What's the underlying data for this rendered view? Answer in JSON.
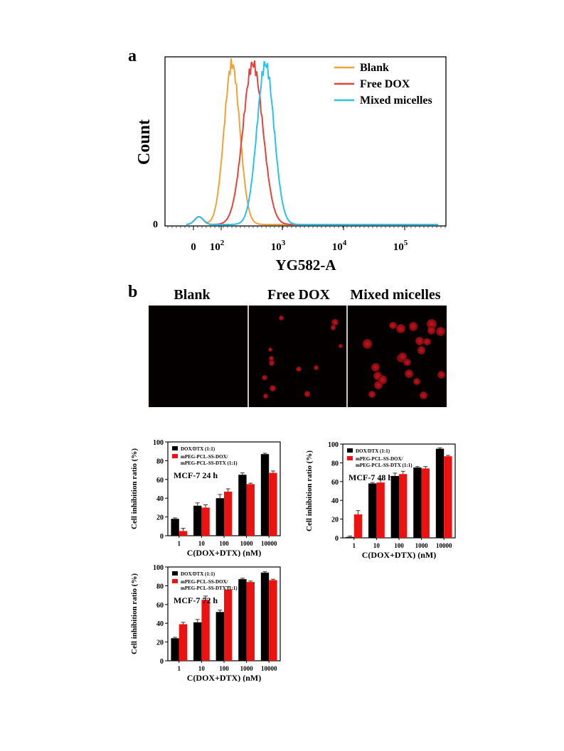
{
  "panel_a_letter": "a",
  "panel_b_letter": "b",
  "fig_b": {
    "captions": [
      "Blank",
      "Free DOX",
      "Mixed micelles"
    ],
    "cell_counts": [
      0,
      13,
      22
    ]
  },
  "colors": {
    "blank": "#f5a033",
    "free_dox": "#e8413c",
    "mixed": "#27c3e8",
    "bar_black": "#000000",
    "bar_red": "#ee1111"
  },
  "chart_data": [
    {
      "id": "flow",
      "type": "line",
      "title": "",
      "xlabel": "YG582-A",
      "ylabel": "Count",
      "xscale": "biexponential",
      "x_tick_labels": [
        "0",
        "10",
        "2",
        "10",
        "3",
        "10",
        "4",
        "10",
        "5"
      ],
      "x_ticks": [
        {
          "base": "0",
          "sup": ""
        },
        {
          "base": "10",
          "sup": "2"
        },
        {
          "base": "10",
          "sup": "3"
        },
        {
          "base": "10",
          "sup": "4"
        },
        {
          "base": "10",
          "sup": "5"
        }
      ],
      "y_tick_labels": [
        "0"
      ],
      "legend": "top-right",
      "series": [
        {
          "name": "Blank",
          "peak_x": 150
        },
        {
          "name": "Free DOX",
          "peak_x": 330
        },
        {
          "name": "Mixed micelles",
          "peak_x": 530
        }
      ]
    },
    {
      "id": "h24",
      "type": "bar",
      "annotation": "MCF-7 24 h",
      "categories": [
        "1",
        "10",
        "100",
        "1000",
        "10000"
      ],
      "xlabel": "C(DOX+DTX) (nM)",
      "ylabel": "Cell inhibition ratio (%)",
      "ylim": [
        0,
        100
      ],
      "y_ticks": [
        "0",
        "20",
        "40",
        "60",
        "80",
        "100"
      ],
      "legend": "top-left",
      "series": [
        {
          "name": "DOX/DTX (1:1)",
          "values": [
            18,
            32,
            40,
            65,
            87
          ],
          "errors": [
            1,
            3,
            4,
            2,
            1
          ]
        },
        {
          "name": "mPEG-PCL-SS-DOX/",
          "name_line2": "mPEG-PCL-SS-DTX (1:1)",
          "values": [
            5,
            30,
            47,
            55,
            67
          ],
          "errors": [
            3,
            3,
            3,
            1,
            2
          ]
        }
      ]
    },
    {
      "id": "h48",
      "type": "bar",
      "annotation": "MCF-7 48 h",
      "categories": [
        "1",
        "10",
        "100",
        "1000",
        "10000"
      ],
      "xlabel": "C(DOX+DTX) (nM)",
      "ylabel": "Cell inhibition ratio (%)",
      "ylim": [
        0,
        100
      ],
      "y_ticks": [
        "0",
        "20",
        "40",
        "60",
        "80",
        "100"
      ],
      "legend": "top-left",
      "series": [
        {
          "name": "DOX/DTX (1:1)",
          "values": [
            1,
            58,
            66,
            75,
            95
          ],
          "errors": [
            1,
            1,
            3,
            1,
            1
          ]
        },
        {
          "name": "mPEG-PCL-SS-DOX/",
          "name_line2": "mPEG-PCL-SS-DTX (1:1)",
          "values": [
            25,
            59,
            68,
            74,
            87
          ],
          "errors": [
            4,
            3,
            3,
            2,
            1
          ]
        }
      ]
    },
    {
      "id": "h72",
      "type": "bar",
      "annotation": "MCF-7 72 h",
      "categories": [
        "1",
        "10",
        "100",
        "1000",
        "10000"
      ],
      "xlabel": "C(DOX+DTX) (nM)",
      "ylabel": "Cell inhibition ratio (%)",
      "ylim": [
        0,
        100
      ],
      "y_ticks": [
        "0",
        "20",
        "40",
        "60",
        "80",
        "100"
      ],
      "legend": "top-left",
      "series": [
        {
          "name": "DOX/DTX (1:1)",
          "values": [
            24,
            41,
            52,
            87,
            94
          ],
          "errors": [
            1,
            3,
            2,
            1,
            1
          ]
        },
        {
          "name": "mPEG-PCL-SS-DOX/",
          "name_line2": "mPEG-PCL-SS-DTX (1:1)",
          "values": [
            39,
            65,
            76,
            84,
            86
          ],
          "errors": [
            2,
            4,
            3,
            1,
            1
          ]
        }
      ]
    }
  ]
}
